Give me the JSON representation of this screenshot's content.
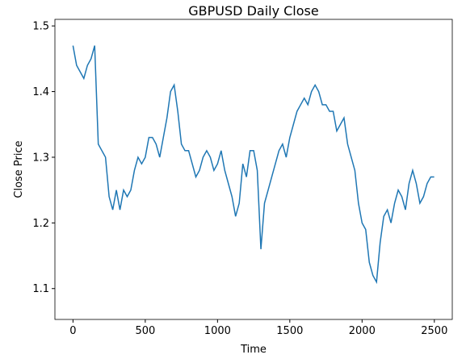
{
  "chart_data": {
    "type": "line",
    "title": "GBPUSD Daily Close",
    "x_label": "Time",
    "y_label": "Close Price",
    "x": [
      0,
      25,
      50,
      75,
      100,
      125,
      150,
      175,
      200,
      225,
      250,
      275,
      300,
      325,
      350,
      375,
      400,
      425,
      450,
      475,
      500,
      525,
      550,
      575,
      600,
      625,
      650,
      675,
      700,
      725,
      750,
      775,
      800,
      825,
      850,
      875,
      900,
      925,
      950,
      975,
      1000,
      1025,
      1050,
      1075,
      1100,
      1125,
      1150,
      1175,
      1200,
      1225,
      1250,
      1275,
      1300,
      1325,
      1350,
      1375,
      1400,
      1425,
      1450,
      1475,
      1500,
      1525,
      1550,
      1575,
      1600,
      1625,
      1650,
      1675,
      1700,
      1725,
      1750,
      1775,
      1800,
      1825,
      1850,
      1875,
      1900,
      1925,
      1950,
      1975,
      2000,
      2025,
      2050,
      2075,
      2100,
      2125,
      2150,
      2175,
      2200,
      2225,
      2250,
      2275,
      2300,
      2325,
      2350,
      2375,
      2400,
      2425,
      2450,
      2475,
      2499
    ],
    "series": [
      {
        "name": "Close",
        "color": "#1f77b4",
        "values": [
          1.47,
          1.44,
          1.43,
          1.42,
          1.44,
          1.45,
          1.47,
          1.32,
          1.31,
          1.3,
          1.24,
          1.22,
          1.25,
          1.22,
          1.25,
          1.24,
          1.25,
          1.28,
          1.3,
          1.29,
          1.3,
          1.33,
          1.33,
          1.32,
          1.3,
          1.33,
          1.36,
          1.4,
          1.41,
          1.37,
          1.32,
          1.31,
          1.31,
          1.29,
          1.27,
          1.28,
          1.3,
          1.31,
          1.3,
          1.28,
          1.29,
          1.31,
          1.28,
          1.26,
          1.24,
          1.21,
          1.23,
          1.29,
          1.27,
          1.31,
          1.31,
          1.28,
          1.16,
          1.23,
          1.25,
          1.27,
          1.29,
          1.31,
          1.32,
          1.3,
          1.33,
          1.35,
          1.37,
          1.38,
          1.39,
          1.38,
          1.4,
          1.41,
          1.4,
          1.38,
          1.38,
          1.37,
          1.37,
          1.34,
          1.35,
          1.36,
          1.32,
          1.3,
          1.28,
          1.23,
          1.2,
          1.19,
          1.14,
          1.12,
          1.11,
          1.17,
          1.21,
          1.22,
          1.2,
          1.23,
          1.25,
          1.24,
          1.22,
          1.26,
          1.28,
          1.26,
          1.23,
          1.24,
          1.26,
          1.27,
          1.27
        ]
      }
    ],
    "xlim": [
      -125,
      2624
    ],
    "ylim": [
      1.053,
      1.51
    ],
    "xticks": [
      0,
      500,
      1000,
      1500,
      2000,
      2500
    ],
    "yticks": [
      1.1,
      1.2,
      1.3,
      1.4,
      1.5
    ],
    "grid": false
  }
}
